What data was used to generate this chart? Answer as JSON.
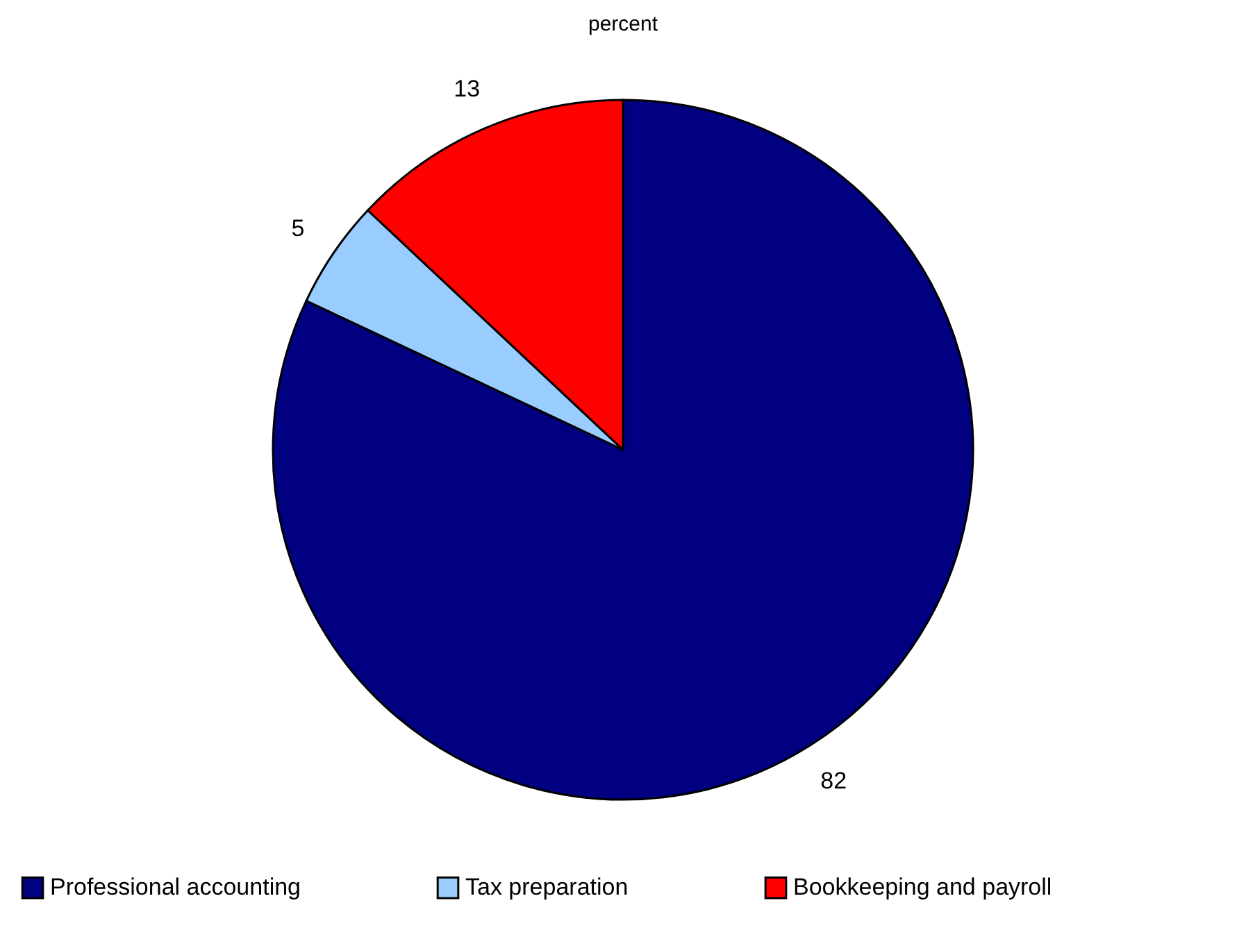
{
  "chart_data": {
    "type": "pie",
    "title": "percent",
    "categories": [
      "Professional accounting",
      "Tax preparation",
      "Bookkeeping and payroll"
    ],
    "values": [
      82,
      5,
      13
    ],
    "colors": [
      "#000080",
      "#99ccff",
      "#ff0000"
    ],
    "data_labels": true,
    "legend": "bottom"
  }
}
